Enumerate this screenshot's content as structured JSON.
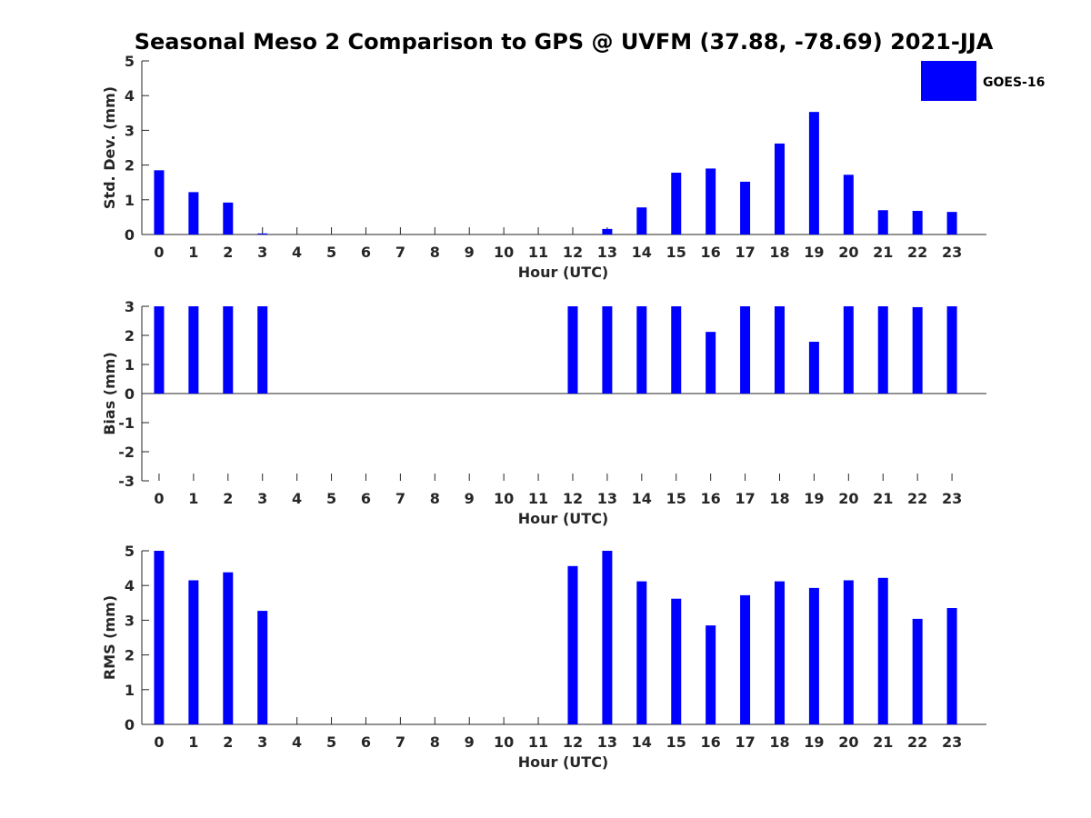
{
  "title": "Seasonal Meso 2 Comparison to GPS @ UVFM (37.88, -78.69) 2021-JJA",
  "bar_color": "#0000ff",
  "legend": {
    "label": "GOES-16",
    "color": "#0000ff"
  },
  "chart_data": [
    {
      "type": "bar",
      "name": "std-dev",
      "title": "",
      "xlabel": "Hour (UTC)",
      "ylabel": "Std. Dev. (mm)",
      "ylim": [
        0,
        5
      ],
      "yticks": [
        0,
        1,
        2,
        3,
        4,
        5
      ],
      "categories": [
        "0",
        "1",
        "2",
        "3",
        "4",
        "5",
        "6",
        "7",
        "8",
        "9",
        "10",
        "11",
        "12",
        "13",
        "14",
        "15",
        "16",
        "17",
        "18",
        "19",
        "20",
        "21",
        "22",
        "23"
      ],
      "series": [
        {
          "name": "GOES-16",
          "values": [
            1.85,
            1.22,
            0.92,
            0.03,
            0,
            0,
            0,
            0,
            0,
            0,
            0,
            0,
            0,
            0.16,
            0.78,
            1.78,
            1.9,
            1.52,
            2.62,
            3.53,
            1.72,
            0.7,
            0.68,
            0.65
          ]
        }
      ]
    },
    {
      "type": "bar",
      "name": "bias",
      "title": "",
      "xlabel": "Hour (UTC)",
      "ylabel": "Bias (mm)",
      "ylim": [
        -3,
        3
      ],
      "yticks": [
        -3,
        -2,
        -1,
        0,
        1,
        2,
        3
      ],
      "categories": [
        "0",
        "1",
        "2",
        "3",
        "4",
        "5",
        "6",
        "7",
        "8",
        "9",
        "10",
        "11",
        "12",
        "13",
        "14",
        "15",
        "16",
        "17",
        "18",
        "19",
        "20",
        "21",
        "22",
        "23"
      ],
      "series": [
        {
          "name": "GOES-16",
          "values": [
            3.0,
            3.0,
            3.0,
            3.0,
            0,
            0,
            0,
            0,
            0,
            0,
            0,
            0,
            3.0,
            3.0,
            3.0,
            3.0,
            2.12,
            3.0,
            3.0,
            1.78,
            3.0,
            3.0,
            2.97,
            3.0
          ]
        }
      ]
    },
    {
      "type": "bar",
      "name": "rms",
      "title": "",
      "xlabel": "Hour (UTC)",
      "ylabel": "RMS (mm)",
      "ylim": [
        0,
        5
      ],
      "yticks": [
        0,
        1,
        2,
        3,
        4,
        5
      ],
      "categories": [
        "0",
        "1",
        "2",
        "3",
        "4",
        "5",
        "6",
        "7",
        "8",
        "9",
        "10",
        "11",
        "12",
        "13",
        "14",
        "15",
        "16",
        "17",
        "18",
        "19",
        "20",
        "21",
        "22",
        "23"
      ],
      "series": [
        {
          "name": "GOES-16",
          "values": [
            5.0,
            4.15,
            4.38,
            3.27,
            0,
            0,
            0,
            0,
            0,
            0,
            0,
            0,
            4.56,
            5.0,
            4.12,
            3.62,
            2.85,
            3.72,
            4.12,
            3.93,
            4.15,
            4.22,
            3.04,
            3.35
          ]
        }
      ]
    }
  ]
}
